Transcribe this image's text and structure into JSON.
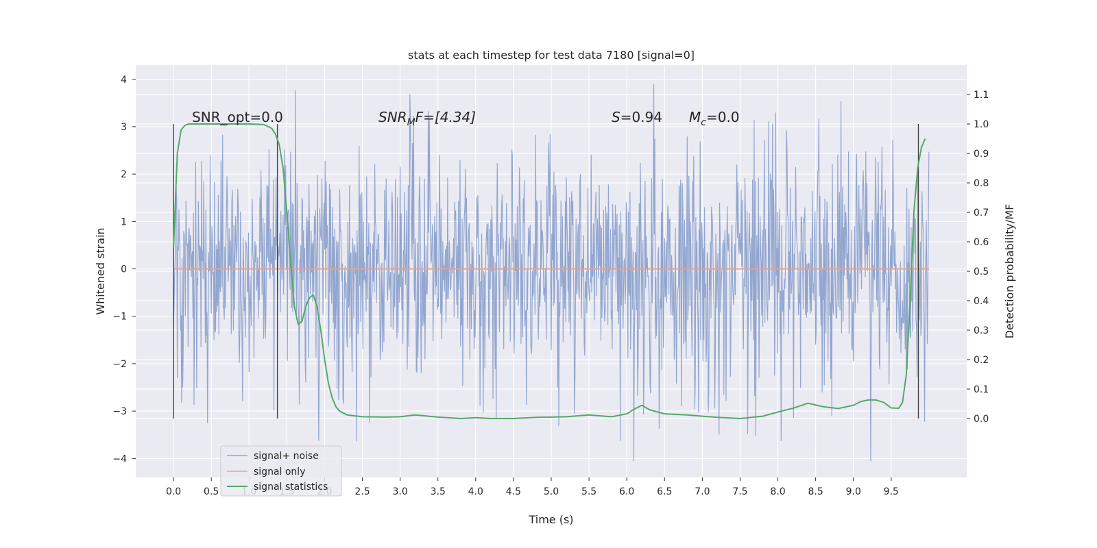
{
  "chart_data": {
    "type": "line",
    "title": "stats at each timestep for test data 7180 [signal=0]",
    "xlabel": "Time (s)",
    "ylabel": "Whitened strain",
    "y2label": "Detection probability/MF",
    "xlim": [
      -0.5,
      10.5
    ],
    "ylim": [
      -4.4,
      4.3
    ],
    "y2lim": [
      -0.2,
      1.2
    ],
    "xticks": [
      0.0,
      0.5,
      1.0,
      1.5,
      2.0,
      2.5,
      3.0,
      3.5,
      4.0,
      4.5,
      5.0,
      5.5,
      6.0,
      6.5,
      7.0,
      7.5,
      8.0,
      8.5,
      9.0,
      9.5
    ],
    "xtick_labels": [
      "0.0",
      "0.5",
      "1.0",
      "1.5",
      "2.0",
      "2.5",
      "3.0",
      "3.5",
      "4.0",
      "4.5",
      "5.0",
      "5.5",
      "6.0",
      "6.5",
      "7.0",
      "7.5",
      "8.0",
      "8.5",
      "9.0",
      "9.5"
    ],
    "yticks": [
      -4,
      -3,
      -2,
      -1,
      0,
      1,
      2,
      3,
      4
    ],
    "ytick_labels": [
      "−4",
      "−3",
      "−2",
      "−1",
      "0",
      "1",
      "2",
      "3",
      "4"
    ],
    "y2ticks": [
      0.0,
      0.1,
      0.2,
      0.3,
      0.4,
      0.5,
      0.6,
      0.7,
      0.8,
      0.9,
      1.0,
      1.1
    ],
    "y2tick_labels": [
      "0.0",
      "0.1",
      "0.2",
      "0.3",
      "0.4",
      "0.5",
      "0.6",
      "0.7",
      "0.8",
      "0.9",
      "1.0",
      "1.1"
    ],
    "grid": true,
    "legend_position": "lower-left",
    "annotations": {
      "snr_opt": "SNR_opt=0.0",
      "snr_mf_sym": "SNR",
      "snr_mf_sub": "M",
      "snr_mf_rest": "F=[4.34]",
      "s_sym": "S",
      "s_rest": "=0.94",
      "mc_sym": "M",
      "mc_sub": "c",
      "mc_rest": "=0.0"
    },
    "vlines_x": [
      0.0,
      1.375,
      9.86
    ],
    "series": [
      {
        "name": "signal+ noise",
        "color": "#92a6cf",
        "noise_range": [
          0.0,
          10.0
        ],
        "envelope_max": 3.9,
        "envelope_min": -4.05
      },
      {
        "name": "signal only",
        "color": "#e8a189",
        "x": [
          0.0,
          10.0
        ],
        "y": [
          0.0,
          0.0
        ]
      },
      {
        "name": "signal statistics",
        "color": "#55a868",
        "axis": "right",
        "x": [
          0.0,
          0.05,
          0.1,
          0.15,
          0.2,
          0.3,
          0.5,
          0.8,
          1.0,
          1.2,
          1.3,
          1.35,
          1.4,
          1.45,
          1.5,
          1.55,
          1.6,
          1.65,
          1.7,
          1.75,
          1.8,
          1.85,
          1.9,
          1.95,
          2.0,
          2.05,
          2.1,
          2.15,
          2.2,
          2.3,
          2.5,
          2.8,
          3.0,
          3.2,
          3.5,
          3.8,
          4.0,
          4.2,
          4.5,
          4.8,
          5.0,
          5.2,
          5.5,
          5.8,
          6.0,
          6.1,
          6.2,
          6.3,
          6.5,
          6.8,
          7.0,
          7.2,
          7.5,
          7.8,
          8.0,
          8.2,
          8.4,
          8.6,
          8.8,
          9.0,
          9.1,
          9.2,
          9.3,
          9.4,
          9.5,
          9.6,
          9.65,
          9.7,
          9.75,
          9.8,
          9.85,
          9.9,
          9.95
        ],
        "y": [
          0.58,
          0.9,
          0.98,
          0.995,
          1.0,
          1.0,
          1.0,
          1.0,
          1.0,
          0.998,
          0.985,
          0.965,
          0.93,
          0.85,
          0.7,
          0.53,
          0.38,
          0.32,
          0.33,
          0.38,
          0.41,
          0.42,
          0.38,
          0.3,
          0.2,
          0.12,
          0.07,
          0.04,
          0.025,
          0.012,
          0.006,
          0.005,
          0.006,
          0.012,
          0.005,
          0.0,
          0.003,
          0.0,
          0.0,
          0.004,
          0.005,
          0.006,
          0.012,
          0.006,
          0.016,
          0.032,
          0.045,
          0.03,
          0.016,
          0.012,
          0.008,
          0.004,
          0.0,
          0.008,
          0.022,
          0.035,
          0.052,
          0.04,
          0.034,
          0.045,
          0.058,
          0.063,
          0.063,
          0.055,
          0.036,
          0.035,
          0.055,
          0.15,
          0.4,
          0.7,
          0.85,
          0.92,
          0.95
        ]
      }
    ]
  }
}
